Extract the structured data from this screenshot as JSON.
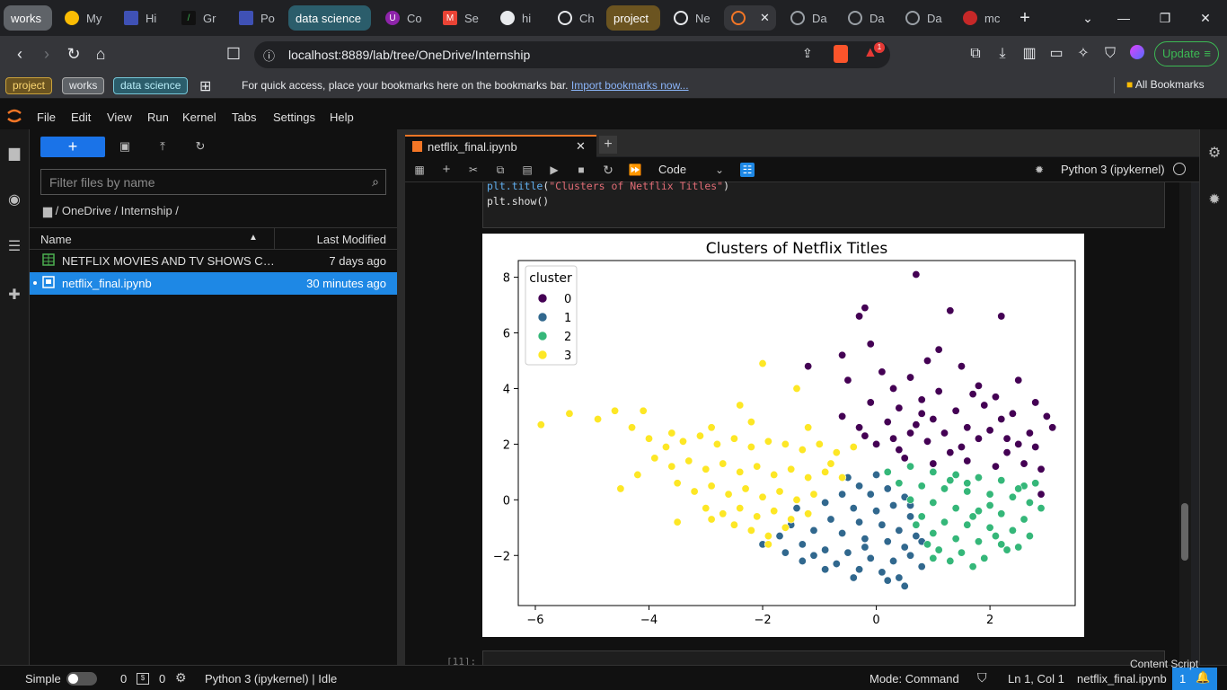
{
  "browser": {
    "tabs": [
      {
        "label": "works",
        "group": "works",
        "color": "#5f6368"
      },
      {
        "label": "My",
        "icon": "drive-icon"
      },
      {
        "label": "Hi",
        "icon": "page-icon"
      },
      {
        "label": "Gr",
        "icon": "terminal-icon"
      },
      {
        "label": "Po",
        "icon": "page-icon"
      },
      {
        "label": "data science",
        "group": "data-science",
        "color": "#2b5d6b"
      },
      {
        "label": "Co",
        "icon": "u-icon"
      },
      {
        "label": "Se",
        "icon": "gmail-icon"
      },
      {
        "label": "hi",
        "icon": "github-icon"
      },
      {
        "label": "Ch",
        "icon": "openai-icon"
      },
      {
        "label": "project",
        "group": "project",
        "color": "#6b5420"
      },
      {
        "label": "Ne",
        "icon": "openai-icon"
      },
      {
        "label": "Da",
        "icon": "globe-icon"
      },
      {
        "label": "Da",
        "icon": "globe-icon"
      },
      {
        "label": "Da",
        "icon": "globe-icon"
      },
      {
        "label": "mc",
        "icon": "shield-icon"
      }
    ],
    "url": "localhost:8889/lab/tree/OneDrive/Internship",
    "update_label": "Update",
    "notification_count": "1",
    "bookmark_groups": [
      "project",
      "works",
      "data science"
    ],
    "bookmark_hint": "For quick access, place your bookmarks here on the bookmarks bar.",
    "import_link": "Import bookmarks now...",
    "all_bookmarks": "All Bookmarks"
  },
  "menu": [
    "File",
    "Edit",
    "View",
    "Run",
    "Kernel",
    "Tabs",
    "Settings",
    "Help"
  ],
  "filebrowser": {
    "filter_placeholder": "Filter files by name",
    "breadcrumb": "/ OneDrive / Internship /",
    "col_name": "Name",
    "col_modified": "Last Modified",
    "files": [
      {
        "name": "NETFLIX MOVIES AND TV SHOWS CLU...",
        "modified": "7 days ago",
        "type": "csv"
      },
      {
        "name": "netflix_final.ipynb",
        "modified": "30 minutes ago",
        "type": "notebook",
        "selected": true
      }
    ]
  },
  "notebook": {
    "tab_title": "netflix_final.ipynb",
    "cell_type": "Code",
    "kernel": "Python 3 (ipykernel)",
    "code_line1_fn": "plt.title",
    "code_line1_arg": "\"Clusters of Netflix Titles\"",
    "code_line2": "plt.show()",
    "next_cell_prompt": "[11]:"
  },
  "chart_data": {
    "type": "scatter",
    "title": "Clusters of Netflix Titles",
    "xlabel": "",
    "ylabel": "",
    "xlim": [
      -6.3,
      3.5
    ],
    "ylim": [
      -3.8,
      8.6
    ],
    "xticks": [
      -6,
      -4,
      -2,
      0,
      2
    ],
    "yticks": [
      -2,
      0,
      2,
      4,
      6,
      8
    ],
    "legend": {
      "title": "cluster",
      "position": "top-left"
    },
    "series": [
      {
        "name": "0",
        "color": "#440154",
        "points": [
          [
            0.7,
            8.1
          ],
          [
            1.3,
            6.8
          ],
          [
            -0.3,
            6.6
          ],
          [
            -0.2,
            6.9
          ],
          [
            2.2,
            6.6
          ],
          [
            -0.1,
            5.6
          ],
          [
            1.1,
            5.4
          ],
          [
            0.9,
            5.0
          ],
          [
            -0.6,
            5.2
          ],
          [
            -1.2,
            4.8
          ],
          [
            0.1,
            4.6
          ],
          [
            -0.5,
            4.3
          ],
          [
            0.6,
            4.4
          ],
          [
            1.5,
            4.8
          ],
          [
            2.5,
            4.3
          ],
          [
            0.3,
            4.0
          ],
          [
            1.8,
            4.1
          ],
          [
            -0.1,
            3.5
          ],
          [
            0.8,
            3.6
          ],
          [
            1.4,
            3.2
          ],
          [
            2.1,
            3.7
          ],
          [
            2.8,
            3.5
          ],
          [
            -0.6,
            3.0
          ],
          [
            -0.3,
            2.6
          ],
          [
            0.2,
            2.8
          ],
          [
            0.6,
            2.4
          ],
          [
            1.0,
            2.9
          ],
          [
            1.6,
            2.6
          ],
          [
            2.2,
            2.9
          ],
          [
            2.7,
            2.4
          ],
          [
            0.0,
            2.0
          ],
          [
            0.4,
            1.8
          ],
          [
            0.9,
            2.1
          ],
          [
            1.3,
            1.7
          ],
          [
            1.8,
            2.2
          ],
          [
            2.3,
            1.7
          ],
          [
            2.8,
            1.9
          ],
          [
            1.0,
            1.3
          ],
          [
            1.6,
            1.4
          ],
          [
            2.1,
            1.2
          ],
          [
            2.6,
            1.3
          ],
          [
            2.9,
            1.1
          ],
          [
            0.5,
            1.5
          ],
          [
            -0.2,
            2.3
          ],
          [
            0.8,
            3.1
          ],
          [
            1.9,
            3.4
          ],
          [
            2.4,
            3.1
          ],
          [
            1.2,
            2.4
          ],
          [
            0.3,
            2.2
          ],
          [
            1.5,
            1.9
          ],
          [
            2.0,
            2.5
          ],
          [
            2.5,
            2.0
          ],
          [
            3.0,
            3.0
          ],
          [
            2.9,
            0.2
          ],
          [
            0.7,
            2.7
          ],
          [
            1.7,
            3.8
          ],
          [
            2.3,
            2.2
          ],
          [
            1.1,
            3.9
          ],
          [
            0.4,
            3.3
          ],
          [
            3.1,
            2.6
          ]
        ]
      },
      {
        "name": "1",
        "color": "#31688e",
        "points": [
          [
            -0.3,
            0.5
          ],
          [
            -0.1,
            0.2
          ],
          [
            0.2,
            0.4
          ],
          [
            0.5,
            0.1
          ],
          [
            -0.6,
            0.2
          ],
          [
            -0.9,
            -0.1
          ],
          [
            -0.4,
            -0.3
          ],
          [
            0.0,
            -0.4
          ],
          [
            0.3,
            -0.2
          ],
          [
            0.6,
            -0.6
          ],
          [
            -1.2,
            -0.5
          ],
          [
            -0.8,
            -0.7
          ],
          [
            -0.3,
            -0.8
          ],
          [
            0.1,
            -0.9
          ],
          [
            0.4,
            -1.1
          ],
          [
            0.7,
            -1.3
          ],
          [
            -1.5,
            -0.9
          ],
          [
            -1.1,
            -1.1
          ],
          [
            -0.6,
            -1.2
          ],
          [
            -0.2,
            -1.4
          ],
          [
            0.2,
            -1.5
          ],
          [
            0.5,
            -1.7
          ],
          [
            0.8,
            -1.5
          ],
          [
            -1.7,
            -1.3
          ],
          [
            -1.3,
            -1.6
          ],
          [
            -0.9,
            -1.8
          ],
          [
            -0.5,
            -1.9
          ],
          [
            -0.1,
            -2.1
          ],
          [
            0.3,
            -2.2
          ],
          [
            0.6,
            -2.0
          ],
          [
            -2.0,
            -1.6
          ],
          [
            -1.6,
            -1.9
          ],
          [
            -1.1,
            -2.0
          ],
          [
            -0.7,
            -2.3
          ],
          [
            -0.3,
            -2.5
          ],
          [
            0.1,
            -2.6
          ],
          [
            0.4,
            -2.8
          ],
          [
            0.5,
            -3.1
          ],
          [
            -0.4,
            -2.8
          ],
          [
            0.2,
            -2.9
          ],
          [
            -1.3,
            -2.2
          ],
          [
            -0.9,
            -2.5
          ],
          [
            0.8,
            -2.4
          ],
          [
            -0.5,
            0.8
          ],
          [
            0.0,
            0.9
          ],
          [
            -1.4,
            -0.3
          ],
          [
            -0.2,
            -1.7
          ],
          [
            0.6,
            -0.2
          ]
        ]
      },
      {
        "name": "2",
        "color": "#35b779",
        "points": [
          [
            0.2,
            1.0
          ],
          [
            0.6,
            1.2
          ],
          [
            1.0,
            1.0
          ],
          [
            1.4,
            0.9
          ],
          [
            1.8,
            0.8
          ],
          [
            2.2,
            0.7
          ],
          [
            2.6,
            0.5
          ],
          [
            0.4,
            0.6
          ],
          [
            0.8,
            0.5
          ],
          [
            1.2,
            0.4
          ],
          [
            1.6,
            0.3
          ],
          [
            2.0,
            0.2
          ],
          [
            2.4,
            0.1
          ],
          [
            2.7,
            -0.1
          ],
          [
            0.6,
            0.0
          ],
          [
            1.0,
            -0.1
          ],
          [
            1.4,
            -0.3
          ],
          [
            1.8,
            -0.4
          ],
          [
            2.2,
            -0.5
          ],
          [
            2.6,
            -0.7
          ],
          [
            0.8,
            -0.6
          ],
          [
            1.2,
            -0.8
          ],
          [
            1.6,
            -0.9
          ],
          [
            2.0,
            -1.0
          ],
          [
            2.4,
            -1.1
          ],
          [
            2.7,
            -1.3
          ],
          [
            1.0,
            -1.2
          ],
          [
            1.4,
            -1.4
          ],
          [
            1.8,
            -1.5
          ],
          [
            2.2,
            -1.6
          ],
          [
            2.5,
            -1.7
          ],
          [
            1.1,
            -1.8
          ],
          [
            1.5,
            -1.9
          ],
          [
            1.9,
            -2.1
          ],
          [
            2.3,
            -1.8
          ],
          [
            1.3,
            -2.2
          ],
          [
            1.7,
            -2.4
          ],
          [
            1.0,
            -2.1
          ],
          [
            2.9,
            -0.3
          ],
          [
            2.8,
            0.6
          ],
          [
            0.9,
            -1.6
          ],
          [
            2.1,
            -1.3
          ],
          [
            1.3,
            0.7
          ],
          [
            1.7,
            -0.6
          ],
          [
            2.5,
            0.4
          ],
          [
            0.7,
            -0.9
          ],
          [
            1.6,
            0.6
          ],
          [
            2.0,
            -0.2
          ]
        ]
      },
      {
        "name": "3",
        "color": "#fde725",
        "points": [
          [
            -5.9,
            2.7
          ],
          [
            -5.4,
            3.1
          ],
          [
            -4.9,
            2.9
          ],
          [
            -4.6,
            3.2
          ],
          [
            -4.1,
            3.2
          ],
          [
            -4.3,
            2.6
          ],
          [
            -4.0,
            2.2
          ],
          [
            -3.7,
            1.9
          ],
          [
            -3.4,
            2.1
          ],
          [
            -3.1,
            2.3
          ],
          [
            -2.8,
            2.0
          ],
          [
            -2.5,
            2.2
          ],
          [
            -2.2,
            1.9
          ],
          [
            -1.9,
            2.1
          ],
          [
            -1.6,
            2.0
          ],
          [
            -1.3,
            1.8
          ],
          [
            -1.0,
            2.0
          ],
          [
            -0.7,
            1.7
          ],
          [
            -0.4,
            1.9
          ],
          [
            -3.9,
            1.5
          ],
          [
            -3.6,
            1.2
          ],
          [
            -3.3,
            1.4
          ],
          [
            -3.0,
            1.1
          ],
          [
            -2.7,
            1.3
          ],
          [
            -2.4,
            1.0
          ],
          [
            -2.1,
            1.2
          ],
          [
            -1.8,
            0.9
          ],
          [
            -1.5,
            1.1
          ],
          [
            -1.2,
            0.8
          ],
          [
            -0.9,
            1.0
          ],
          [
            -0.6,
            0.8
          ],
          [
            -4.2,
            0.9
          ],
          [
            -3.5,
            0.6
          ],
          [
            -3.2,
            0.3
          ],
          [
            -2.9,
            0.5
          ],
          [
            -2.6,
            0.2
          ],
          [
            -2.3,
            0.4
          ],
          [
            -2.0,
            0.1
          ],
          [
            -1.7,
            0.3
          ],
          [
            -1.4,
            0.0
          ],
          [
            -1.1,
            0.2
          ],
          [
            -3.0,
            -0.3
          ],
          [
            -2.7,
            -0.5
          ],
          [
            -2.4,
            -0.3
          ],
          [
            -2.1,
            -0.6
          ],
          [
            -1.8,
            -0.4
          ],
          [
            -1.5,
            -0.7
          ],
          [
            -1.2,
            -0.5
          ],
          [
            -2.5,
            -0.9
          ],
          [
            -2.2,
            -1.1
          ],
          [
            -1.9,
            -1.3
          ],
          [
            -1.6,
            -1.0
          ],
          [
            -3.5,
            -0.8
          ],
          [
            -4.5,
            0.4
          ],
          [
            -2.0,
            4.9
          ],
          [
            -1.4,
            4.0
          ],
          [
            -2.4,
            3.4
          ],
          [
            -2.2,
            2.8
          ],
          [
            -1.2,
            2.6
          ],
          [
            -2.9,
            2.6
          ],
          [
            -3.6,
            2.4
          ],
          [
            -0.8,
            1.3
          ],
          [
            -1.9,
            -1.6
          ],
          [
            -2.9,
            -0.7
          ]
        ]
      }
    ]
  }
}
